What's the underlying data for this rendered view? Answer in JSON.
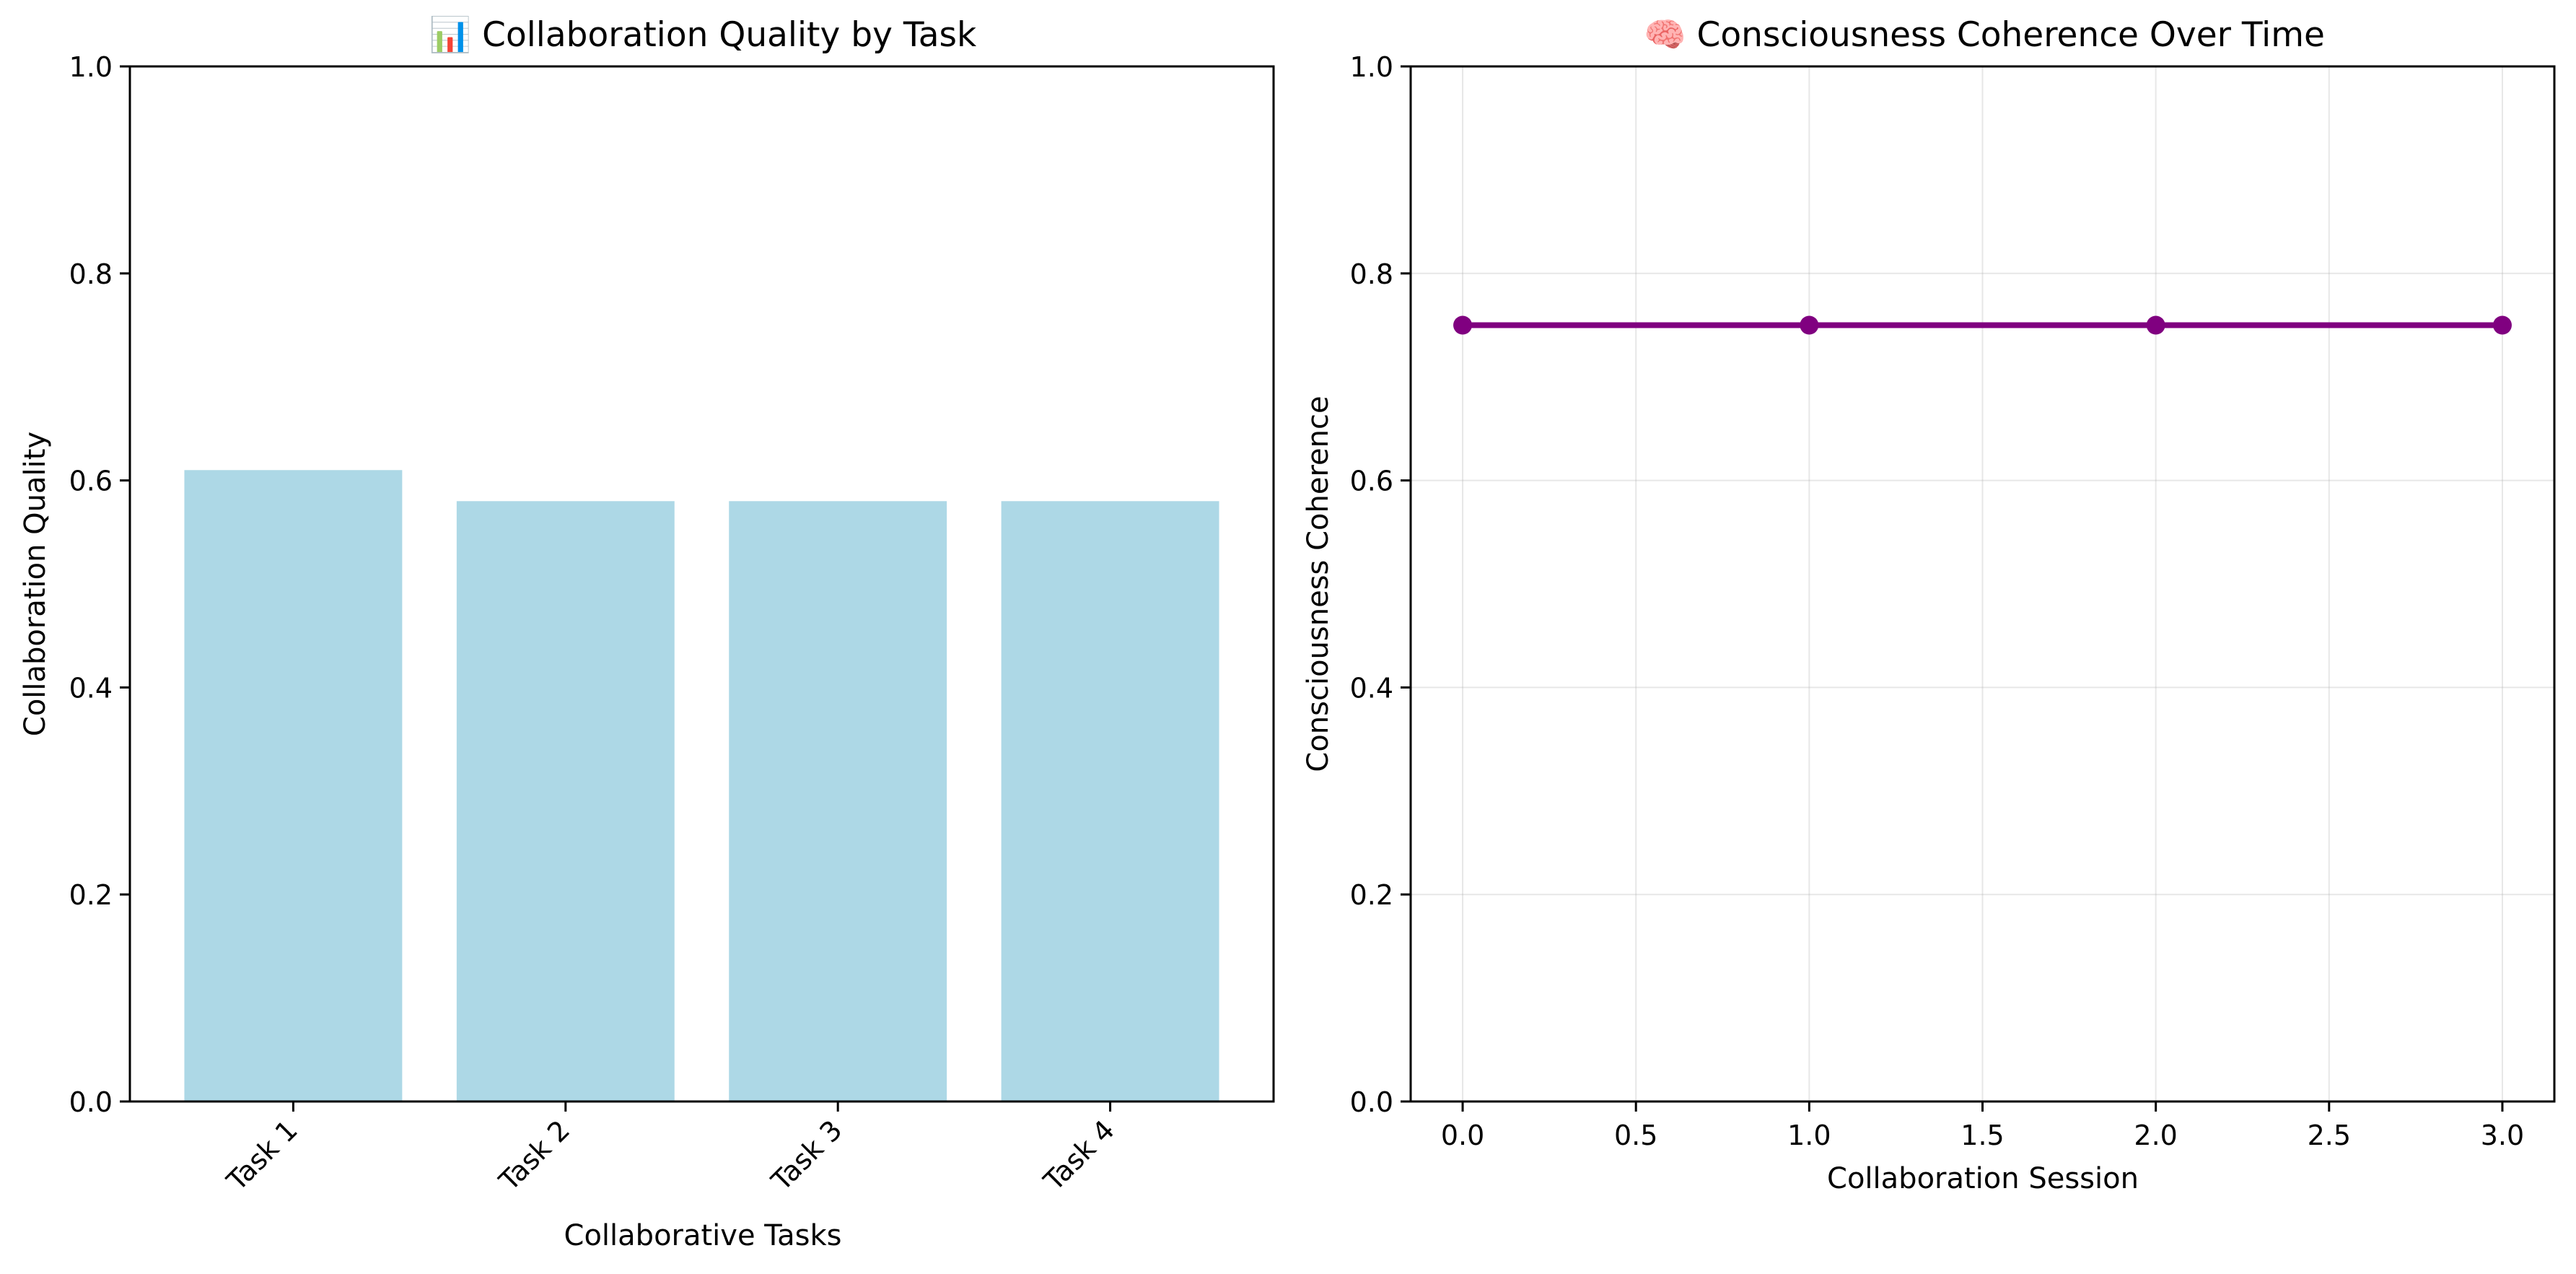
{
  "chart_data": [
    {
      "type": "bar",
      "title": "📊 Collaboration Quality by Task",
      "xlabel": "Collaborative Tasks",
      "ylabel": "Collaboration Quality",
      "categories": [
        "Task 1",
        "Task 2",
        "Task 3",
        "Task 4"
      ],
      "values": [
        0.61,
        0.58,
        0.58,
        0.58
      ],
      "ylim": [
        0,
        1
      ],
      "yticks": [
        0.0,
        0.2,
        0.4,
        0.6,
        0.8,
        1.0
      ],
      "ytick_labels": [
        "0.0",
        "0.2",
        "0.4",
        "0.6",
        "0.8",
        "1.0"
      ],
      "xtick_rotation": "45 degrees",
      "grid": false,
      "color": "#add8e6"
    },
    {
      "type": "line",
      "title": "🧠 Consciousness Coherence Over Time",
      "xlabel": "Collaboration Session",
      "ylabel": "Consciousness Coherence",
      "x": [
        0,
        1,
        2,
        3
      ],
      "y": [
        0.75,
        0.75,
        0.75,
        0.75
      ],
      "xlim": [
        -0.15,
        3.15
      ],
      "ylim": [
        0,
        1
      ],
      "xticks": [
        0.0,
        0.5,
        1.0,
        1.5,
        2.0,
        2.5,
        3.0
      ],
      "xtick_labels": [
        "0.0",
        "0.5",
        "1.0",
        "1.5",
        "2.0",
        "2.5",
        "3.0"
      ],
      "yticks": [
        0.0,
        0.2,
        0.4,
        0.6,
        0.8,
        1.0
      ],
      "ytick_labels": [
        "0.0",
        "0.2",
        "0.4",
        "0.6",
        "0.8",
        "1.0"
      ],
      "grid": true,
      "marker": "circle",
      "color": "#800080"
    }
  ]
}
